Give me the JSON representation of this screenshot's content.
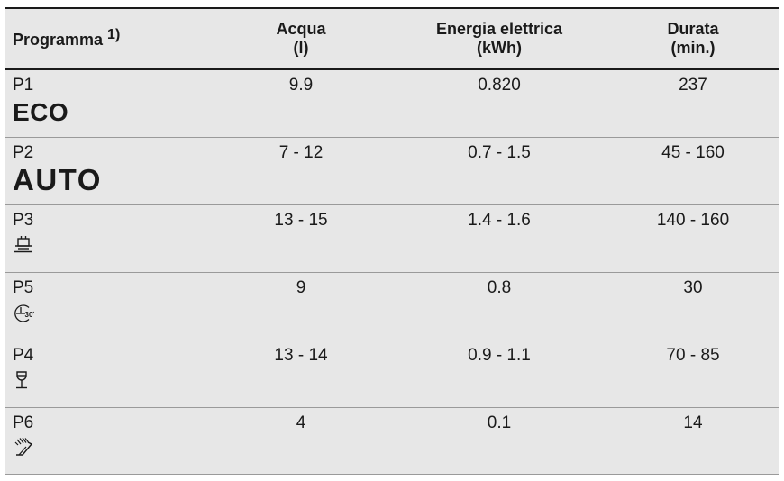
{
  "table": {
    "headers": {
      "program": "Programma",
      "program_note": "1)",
      "water_line1": "Acqua",
      "water_line2": "(l)",
      "energy_line1": "Energia elettrica",
      "energy_line2": "(kWh)",
      "duration_line1": "Durata",
      "duration_line2": "(min.)"
    },
    "rows": [
      {
        "code": "P1",
        "label": "ECO",
        "icon": "",
        "water": "9.9",
        "energy": "0.820",
        "duration": "237"
      },
      {
        "code": "P2",
        "label": "AUTO",
        "icon": "",
        "water": "7 - 12",
        "energy": "0.7 - 1.5",
        "duration": "45 - 160"
      },
      {
        "code": "P3",
        "label": "",
        "icon": "pots-pans-icon",
        "water": "13 - 15",
        "energy": "1.4 - 1.6",
        "duration": "140 - 160"
      },
      {
        "code": "P5",
        "label": "",
        "icon": "30-minute-clock-icon",
        "water": "9",
        "energy": "0.8",
        "duration": "30"
      },
      {
        "code": "P4",
        "label": "",
        "icon": "wine-glass-icon",
        "water": "13 - 14",
        "energy": "0.9 - 1.1",
        "duration": "70 - 85"
      },
      {
        "code": "P6",
        "label": "",
        "icon": "rinse-spray-icon",
        "water": "4",
        "energy": "0.1",
        "duration": "14"
      }
    ]
  },
  "colors": {
    "row_background": "#e7e7e7",
    "rule": "#1a1a1a",
    "separator": "#9a9a9a"
  }
}
